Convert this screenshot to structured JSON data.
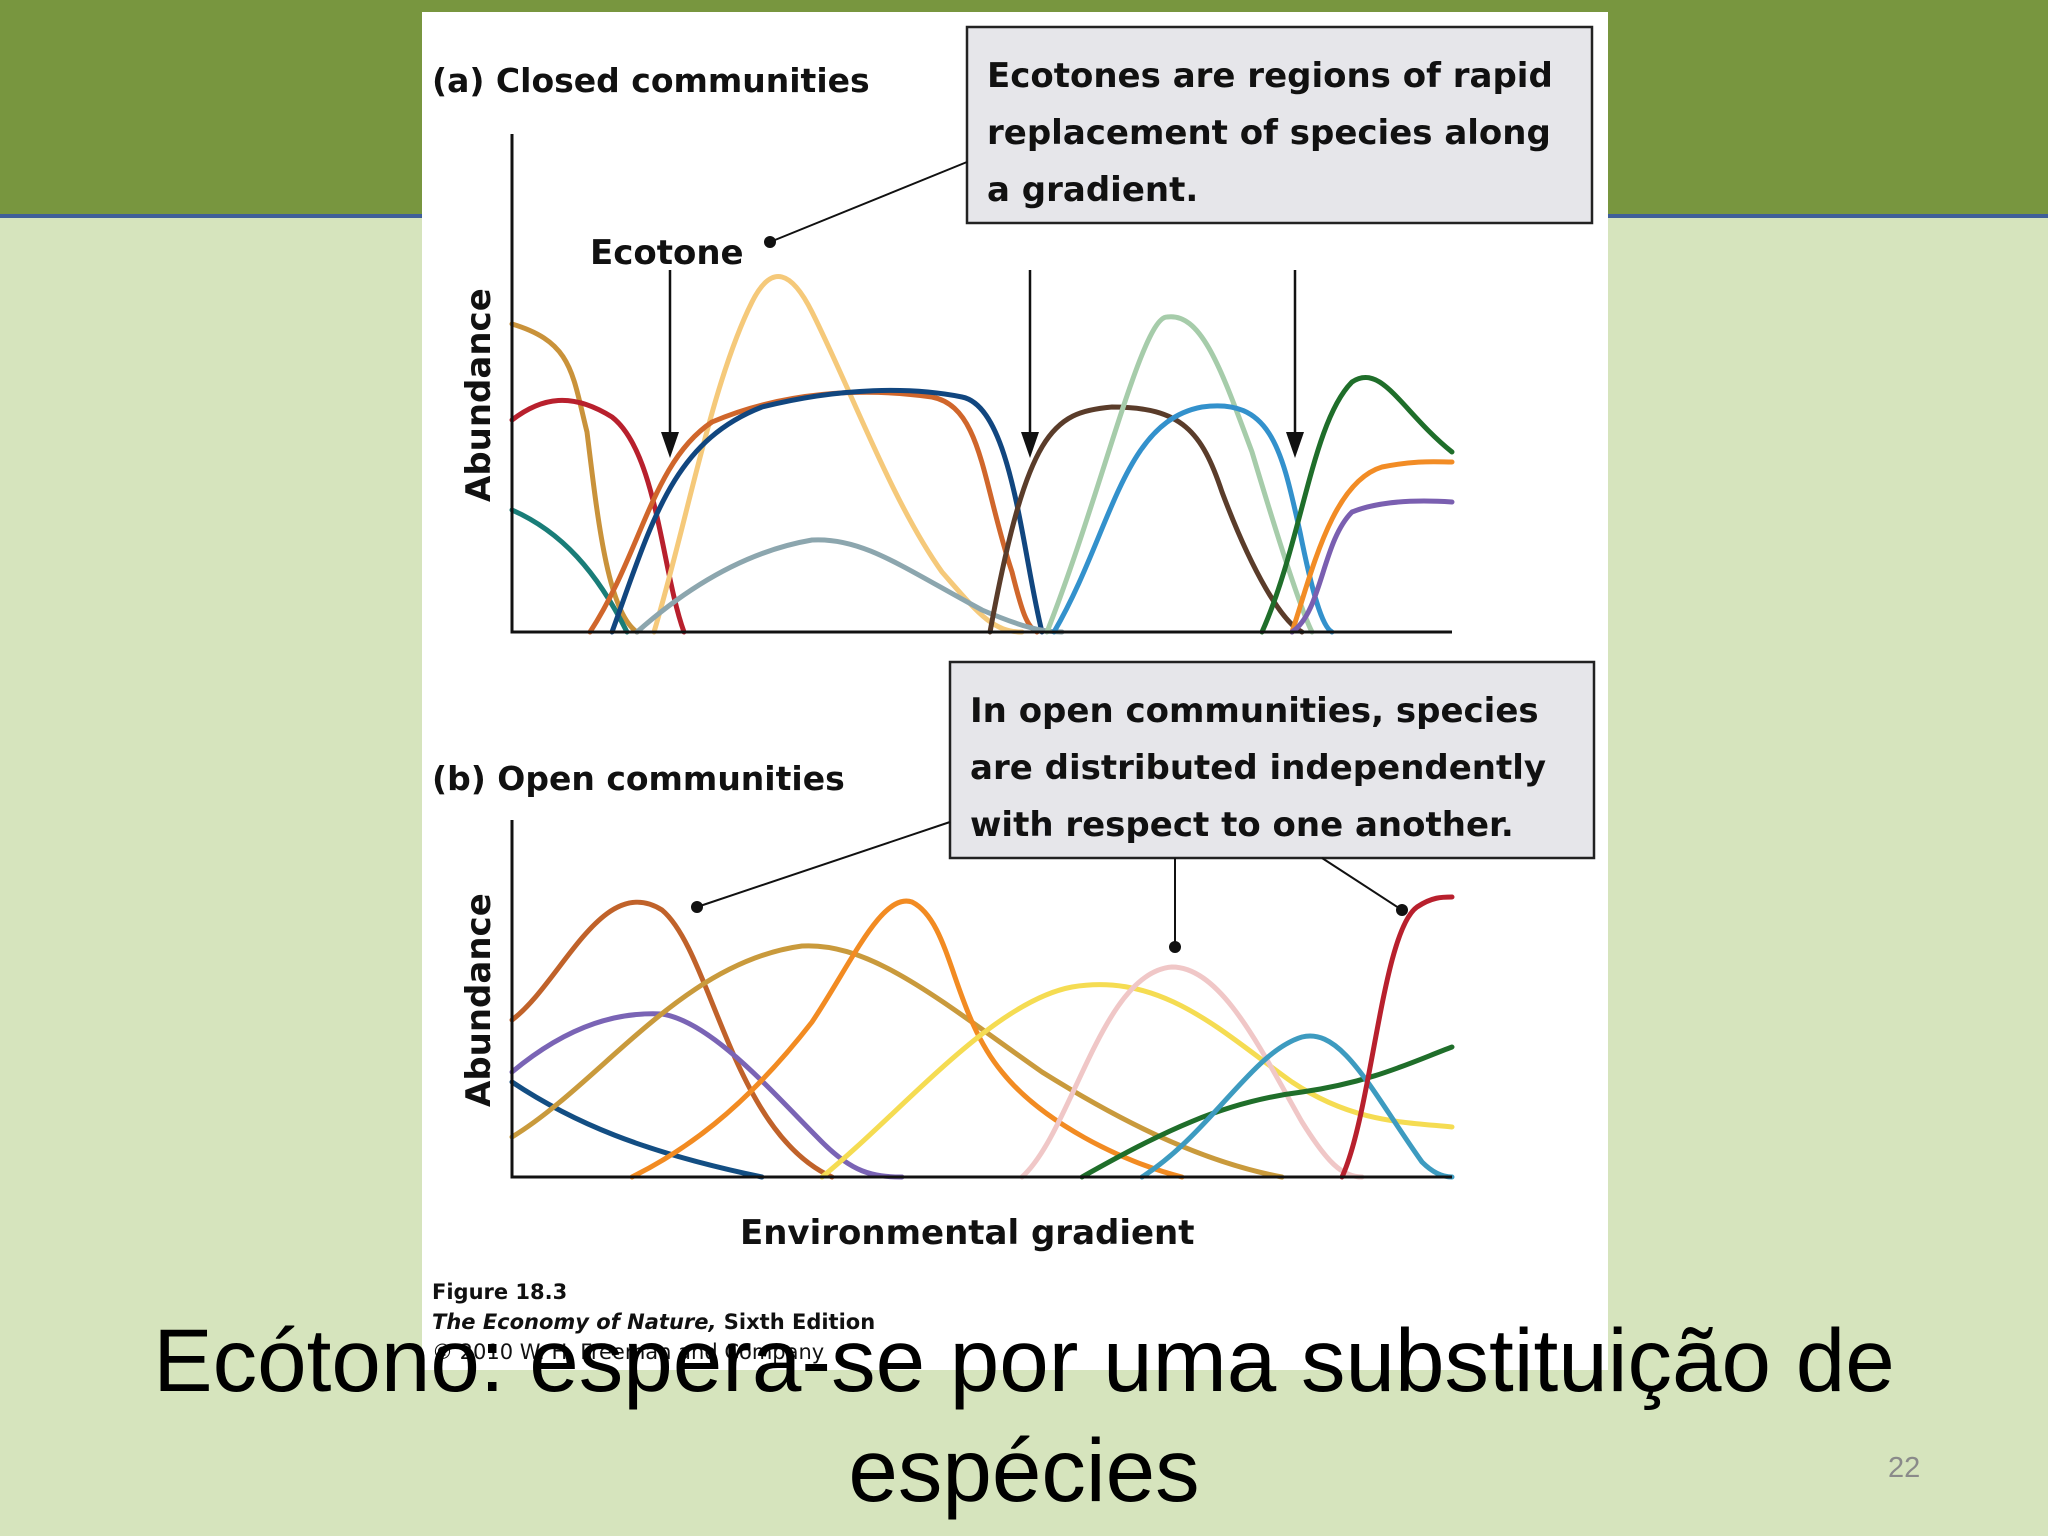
{
  "slide": {
    "main_text_line1": "Ecótono: espera-se por uma substituição de",
    "main_text_line2": "espécies",
    "page_number": "22"
  },
  "figure": {
    "panel_a_title": "(a) Closed communities",
    "panel_b_title": "(b) Open communities",
    "y_axis_label": "Abundance",
    "x_axis_label": "Environmental gradient",
    "ecotone_label": "Ecotone",
    "callout_a": [
      "Ecotones are regions of rapid",
      "replacement of species along",
      "a gradient."
    ],
    "callout_b": [
      "In open communities, species",
      "are distributed independently",
      "with respect to one another."
    ],
    "caption_title": "Figure 18.3",
    "caption_book_italic": "The Economy of Nature,",
    "caption_book_edition": " Sixth Edition",
    "caption_copyright": "© 2010 W. H. Freeman and Company"
  },
  "colors": {
    "header_green": "#78963f",
    "slide_background": "#d6e4bd",
    "callout_fill": "#e6e6ea"
  }
}
